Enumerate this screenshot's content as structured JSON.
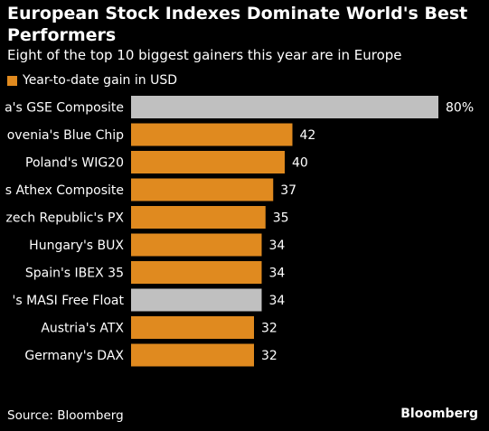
{
  "title": "European Stock Indexes Dominate World's Best Performers",
  "subtitle": "Eight of the top 10 biggest gainers this year are in Europe",
  "source": "Source: Bloomberg",
  "brand": "Bloomberg",
  "colors": {
    "europe": "#e08a1f",
    "other": "#c0c0c0",
    "background": "#000000"
  },
  "chart_data": {
    "type": "bar",
    "orientation": "horizontal",
    "legend": {
      "position": "top-left",
      "entries": [
        {
          "name": "Year-to-date gain in USD",
          "color": "#e08a1f"
        }
      ]
    },
    "categories": [
      "a's GSE Composite",
      "ovenia's Blue Chip",
      "Poland's WIG20",
      "s Athex Composite",
      "zech Republic's PX",
      "Hungary's BUX",
      "Spain's IBEX 35",
      "'s MASI Free Float",
      "Austria's ATX",
      "Germany's DAX"
    ],
    "values": [
      80,
      42,
      40,
      37,
      35,
      34,
      34,
      34,
      32,
      32
    ],
    "value_labels": [
      "80%",
      "42",
      "40",
      "37",
      "35",
      "34",
      "34",
      "34",
      "32",
      "32"
    ],
    "bar_colors": [
      "#c0c0c0",
      "#e08a1f",
      "#e08a1f",
      "#e08a1f",
      "#e08a1f",
      "#e08a1f",
      "#e08a1f",
      "#c0c0c0",
      "#e08a1f",
      "#e08a1f"
    ],
    "xlim": [
      0,
      80
    ],
    "grid": false
  }
}
